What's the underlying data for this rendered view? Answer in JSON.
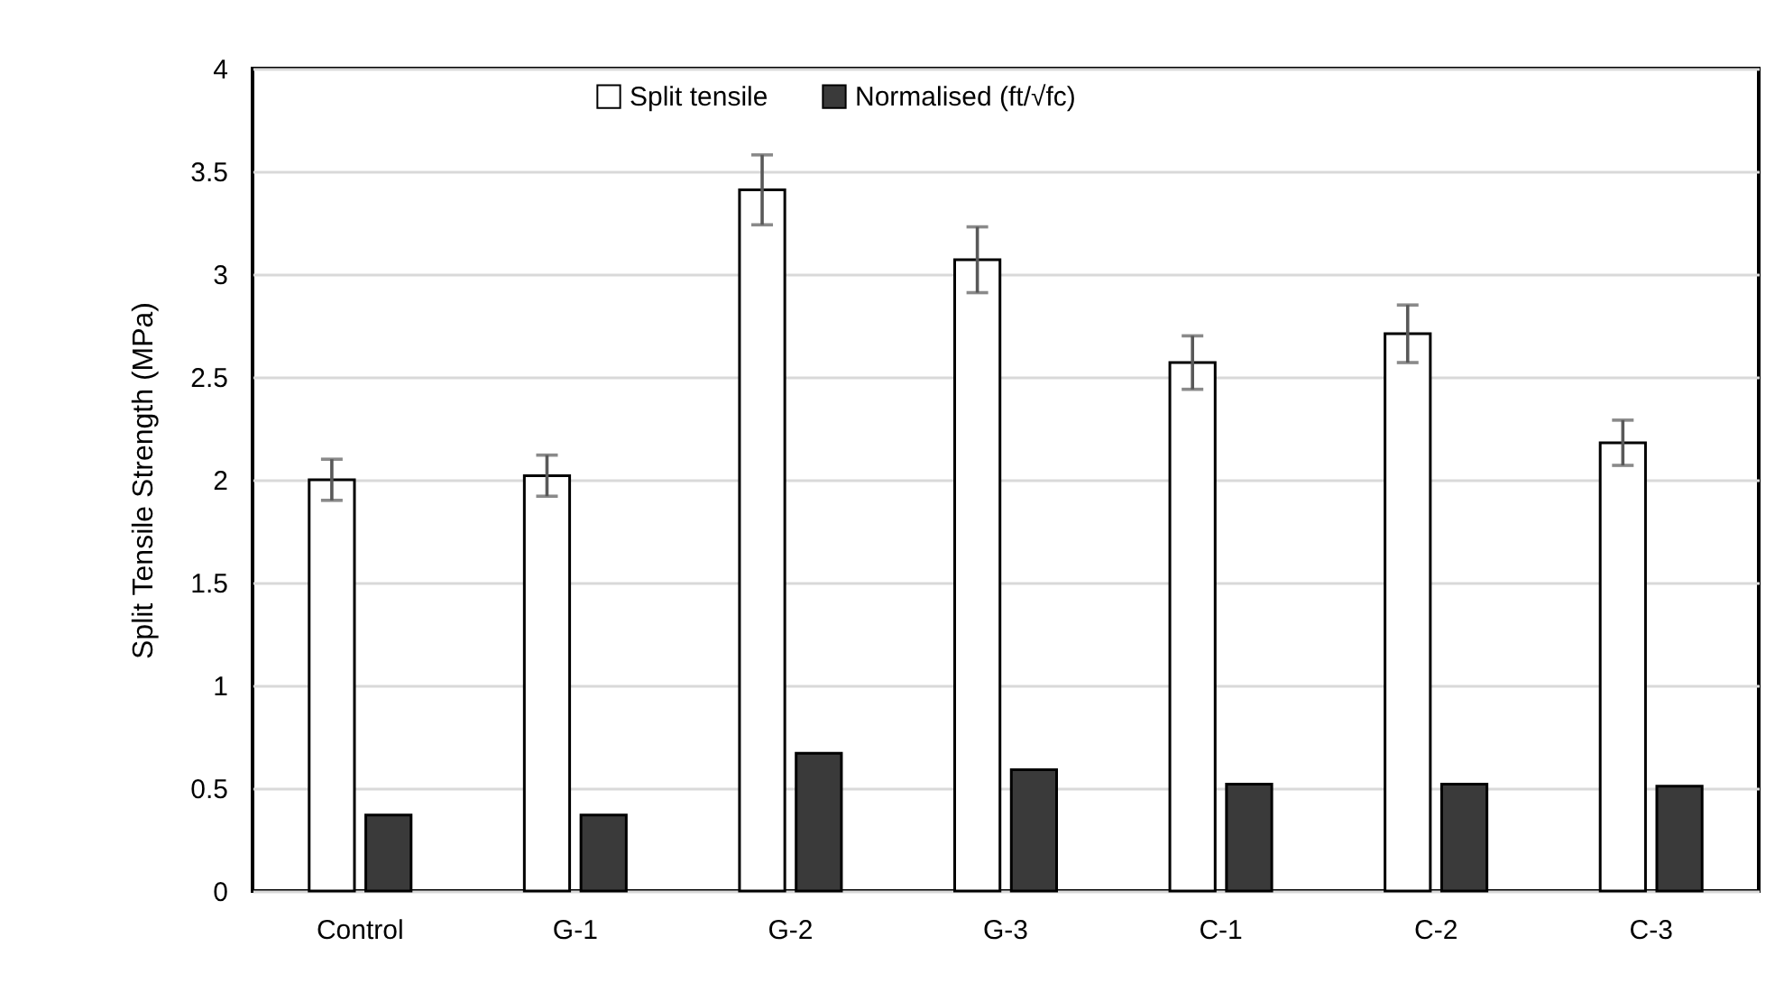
{
  "chart_data": {
    "type": "bar",
    "ylabel": "Split Tensile Strength (MPa)",
    "categories": [
      "Control",
      "G-1",
      "G-2",
      "G-3",
      "C-1",
      "C-2",
      "C-3"
    ],
    "series": [
      {
        "name": "Split tensile",
        "color": "#ffffff",
        "values": [
          2.0,
          2.02,
          3.41,
          3.07,
          2.57,
          2.71,
          2.18
        ],
        "errors": [
          0.1,
          0.1,
          0.17,
          0.16,
          0.13,
          0.14,
          0.11
        ]
      },
      {
        "name": "Normalised (ft/√fc)",
        "color": "#3a3a3a",
        "values": [
          0.37,
          0.37,
          0.67,
          0.59,
          0.52,
          0.52,
          0.51
        ]
      }
    ],
    "ylim": [
      0,
      4
    ],
    "yticks": [
      0,
      0.5,
      1,
      1.5,
      2,
      2.5,
      3,
      3.5,
      4
    ],
    "grid": "y",
    "legend": "top"
  }
}
